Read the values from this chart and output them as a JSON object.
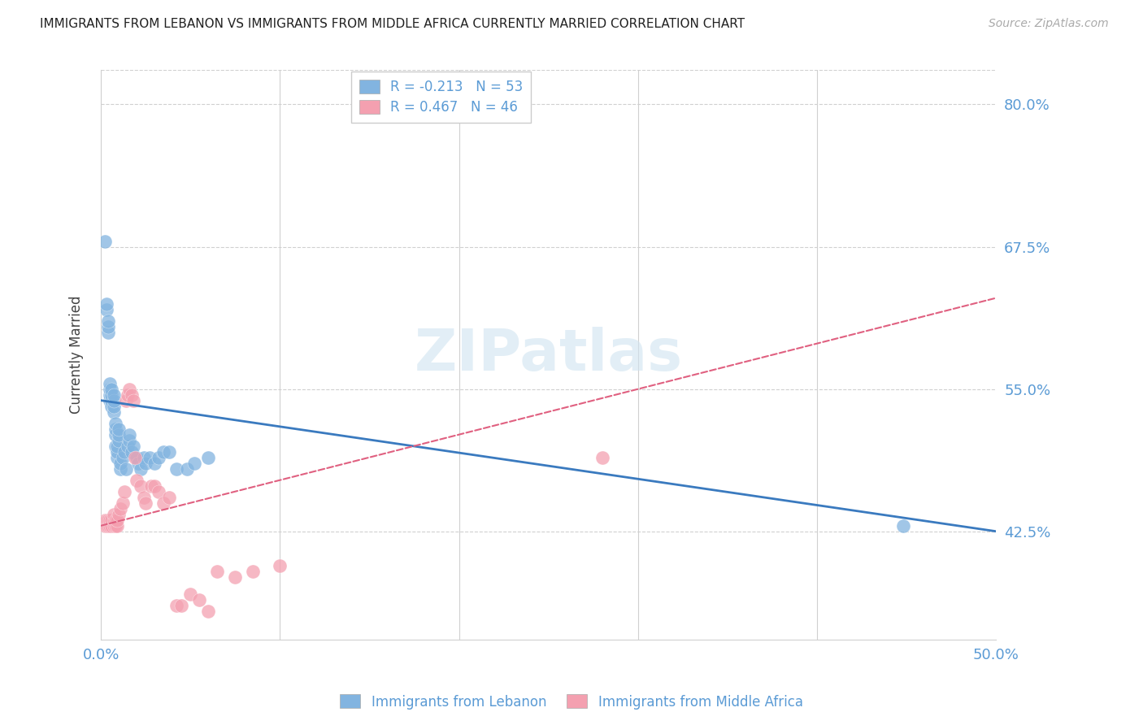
{
  "title": "IMMIGRANTS FROM LEBANON VS IMMIGRANTS FROM MIDDLE AFRICA CURRENTLY MARRIED CORRELATION CHART",
  "source": "Source: ZipAtlas.com",
  "ylabel": "Currently Married",
  "xlim": [
    0.0,
    0.5
  ],
  "ylim": [
    0.33,
    0.83
  ],
  "yticks": [
    0.425,
    0.55,
    0.675,
    0.8
  ],
  "ytick_labels": [
    "42.5%",
    "55.0%",
    "67.5%",
    "80.0%"
  ],
  "xticks": [
    0.0,
    0.1,
    0.2,
    0.3,
    0.4,
    0.5
  ],
  "xtick_labels": [
    "0.0%",
    "",
    "",
    "",
    "",
    "50.0%"
  ],
  "legend_blue_r": "-0.213",
  "legend_blue_n": "53",
  "legend_pink_r": "0.467",
  "legend_pink_n": "46",
  "blue_color": "#82b4e0",
  "pink_color": "#f4a0b0",
  "blue_line_color": "#3a7abf",
  "pink_line_color": "#e06080",
  "axis_tick_color": "#5b9bd5",
  "watermark": "ZIPatlas",
  "blue_line_x0": 0.0,
  "blue_line_y0": 0.54,
  "blue_line_x1": 0.5,
  "blue_line_y1": 0.425,
  "pink_line_x0": 0.0,
  "pink_line_y0": 0.43,
  "pink_line_x1": 0.5,
  "pink_line_y1": 0.63,
  "blue_scatter_x": [
    0.002,
    0.003,
    0.003,
    0.004,
    0.004,
    0.004,
    0.005,
    0.005,
    0.005,
    0.005,
    0.006,
    0.006,
    0.006,
    0.006,
    0.007,
    0.007,
    0.007,
    0.007,
    0.008,
    0.008,
    0.008,
    0.008,
    0.009,
    0.009,
    0.009,
    0.01,
    0.01,
    0.01,
    0.011,
    0.011,
    0.012,
    0.013,
    0.014,
    0.015,
    0.016,
    0.016,
    0.017,
    0.018,
    0.02,
    0.021,
    0.022,
    0.024,
    0.025,
    0.027,
    0.03,
    0.032,
    0.035,
    0.038,
    0.042,
    0.048,
    0.052,
    0.06,
    0.448
  ],
  "blue_scatter_y": [
    0.68,
    0.62,
    0.625,
    0.6,
    0.605,
    0.61,
    0.54,
    0.545,
    0.55,
    0.555,
    0.535,
    0.54,
    0.545,
    0.55,
    0.53,
    0.535,
    0.54,
    0.545,
    0.5,
    0.51,
    0.515,
    0.52,
    0.49,
    0.495,
    0.5,
    0.505,
    0.51,
    0.515,
    0.48,
    0.485,
    0.49,
    0.495,
    0.48,
    0.5,
    0.505,
    0.51,
    0.495,
    0.5,
    0.49,
    0.485,
    0.48,
    0.49,
    0.485,
    0.49,
    0.485,
    0.49,
    0.495,
    0.495,
    0.48,
    0.48,
    0.485,
    0.49,
    0.43
  ],
  "pink_scatter_x": [
    0.002,
    0.002,
    0.003,
    0.003,
    0.004,
    0.004,
    0.005,
    0.005,
    0.006,
    0.006,
    0.007,
    0.007,
    0.007,
    0.008,
    0.008,
    0.009,
    0.009,
    0.01,
    0.011,
    0.012,
    0.013,
    0.014,
    0.015,
    0.016,
    0.017,
    0.018,
    0.019,
    0.02,
    0.022,
    0.024,
    0.025,
    0.028,
    0.03,
    0.032,
    0.035,
    0.038,
    0.042,
    0.045,
    0.05,
    0.055,
    0.06,
    0.065,
    0.075,
    0.085,
    0.1,
    0.28
  ],
  "pink_scatter_y": [
    0.43,
    0.435,
    0.43,
    0.435,
    0.43,
    0.435,
    0.43,
    0.435,
    0.43,
    0.435,
    0.43,
    0.435,
    0.44,
    0.43,
    0.435,
    0.43,
    0.435,
    0.44,
    0.445,
    0.45,
    0.46,
    0.54,
    0.545,
    0.55,
    0.545,
    0.54,
    0.49,
    0.47,
    0.465,
    0.455,
    0.45,
    0.465,
    0.465,
    0.46,
    0.45,
    0.455,
    0.36,
    0.36,
    0.37,
    0.365,
    0.355,
    0.39,
    0.385,
    0.39,
    0.395,
    0.49
  ]
}
